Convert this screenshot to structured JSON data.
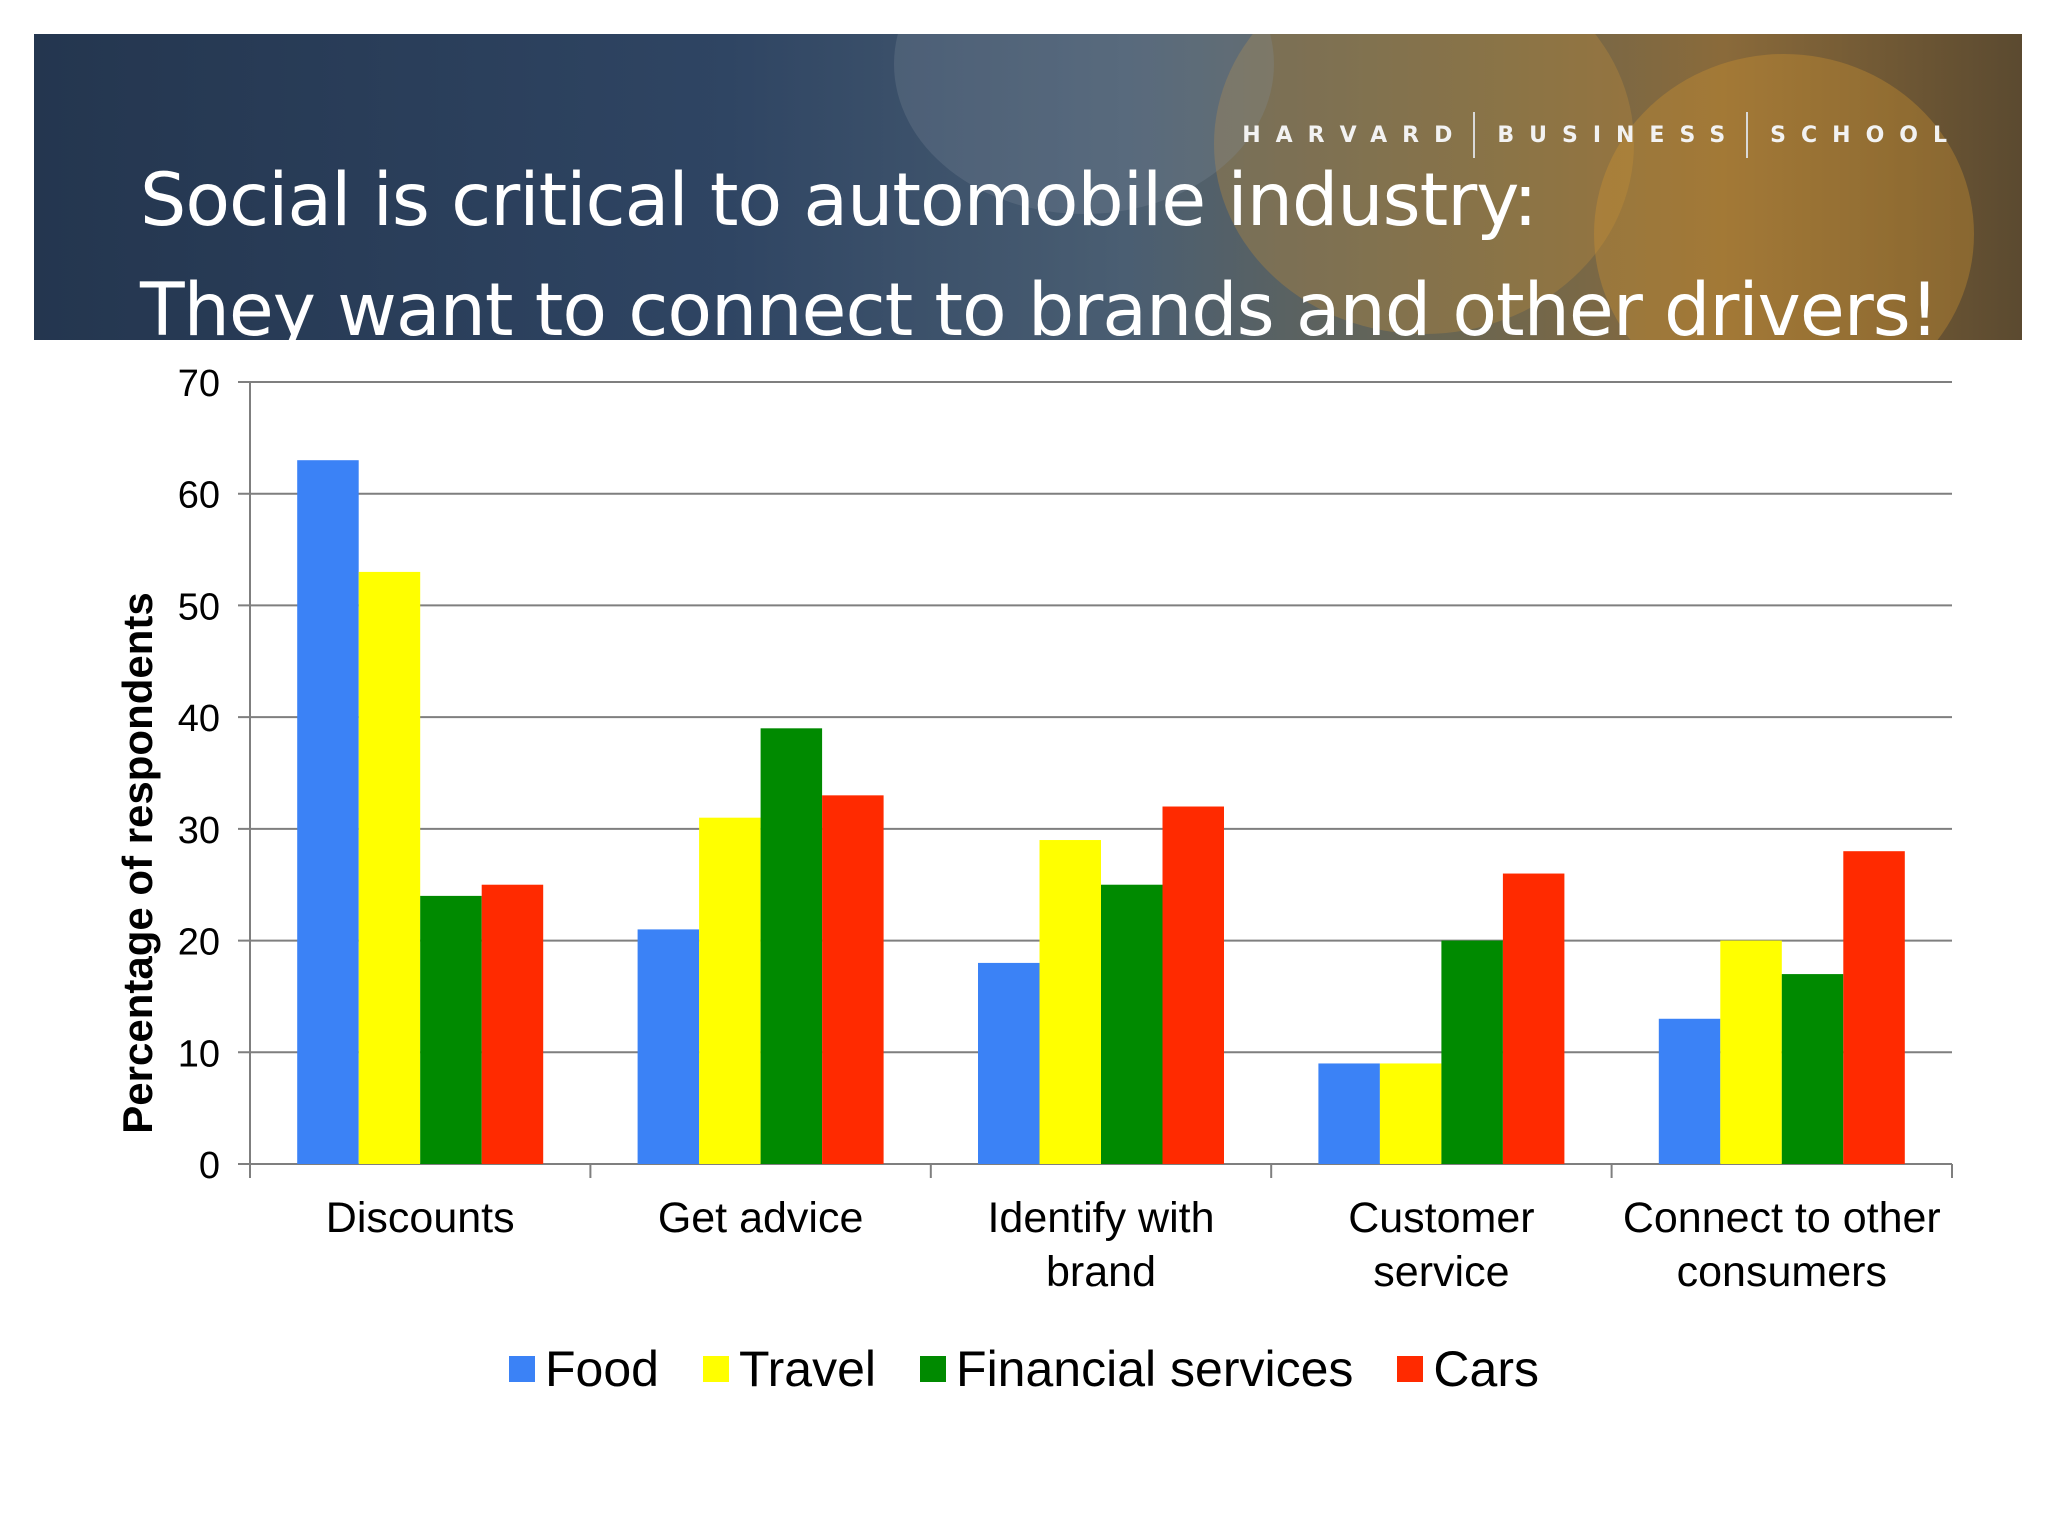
{
  "banner": {
    "brand_words": [
      "HARVARD",
      "BUSINESS",
      "SCHOOL"
    ],
    "title_line1": "Social is critical to automobile industry:",
    "title_line2": "They want to connect to brands and other drivers!"
  },
  "chart_data": {
    "type": "bar",
    "categories": [
      [
        "Discounts"
      ],
      [
        "Get advice"
      ],
      [
        "Identify with",
        "brand"
      ],
      [
        "Customer",
        "service"
      ],
      [
        "Connect to other",
        "consumers"
      ]
    ],
    "series": [
      {
        "name": "Food",
        "color": "#3b82f6",
        "values": [
          63,
          21,
          18,
          9,
          13
        ]
      },
      {
        "name": "Travel",
        "color": "#ffff00",
        "values": [
          53,
          31,
          29,
          9,
          20
        ]
      },
      {
        "name": "Financial services",
        "color": "#008a00",
        "values": [
          24,
          39,
          25,
          20,
          17
        ]
      },
      {
        "name": "Cars",
        "color": "#ff2a00",
        "values": [
          25,
          33,
          32,
          26,
          28
        ]
      }
    ],
    "ylabel": "Percentage of respondents",
    "ylim": [
      0,
      70
    ],
    "yticks": [
      0,
      10,
      20,
      30,
      40,
      50,
      60,
      70
    ],
    "grid": true,
    "legend_position": "bottom"
  }
}
